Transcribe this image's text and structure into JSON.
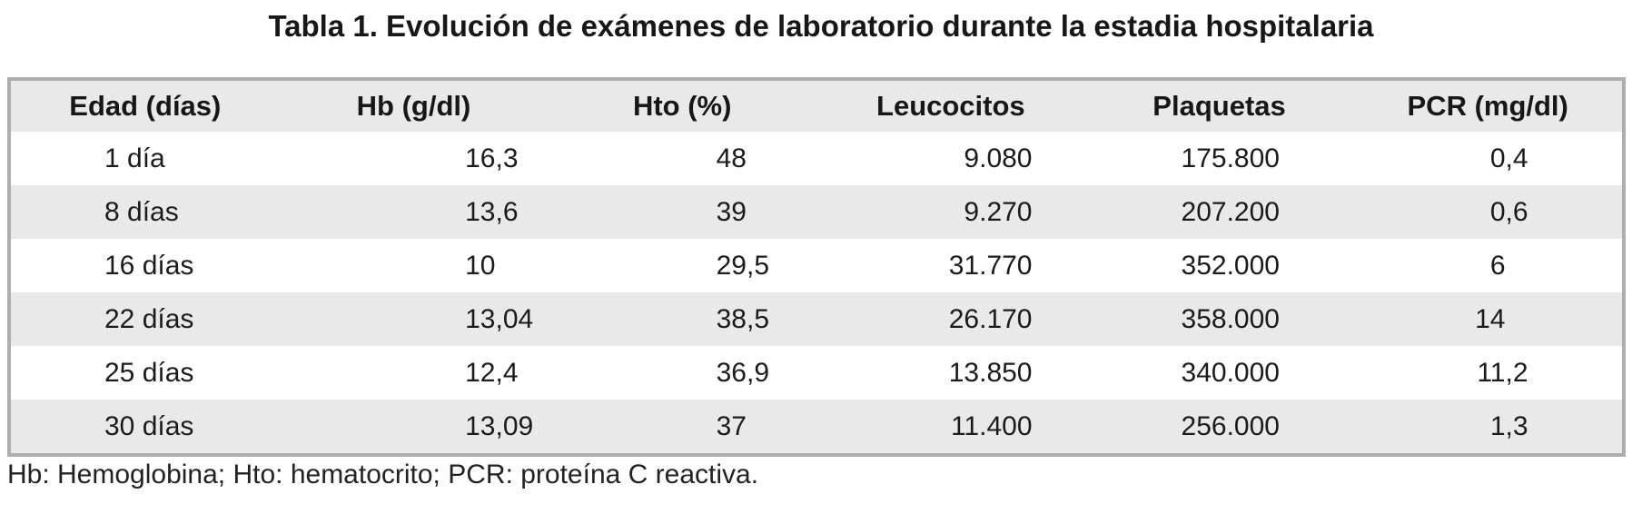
{
  "title": "Tabla 1. Evolución de exámenes de laboratorio durante la estadia hospitalaria",
  "table": {
    "columns": [
      "Edad (días)",
      "Hb (g/dl)",
      "Hto (%)",
      "Leucocitos",
      "Plaquetas",
      "PCR (mg/dl)"
    ],
    "rows": [
      [
        "1 día",
        "16,3",
        "48",
        "9.080",
        "175.800",
        "0,4"
      ],
      [
        "8 días",
        "13,6",
        "39",
        "9.270",
        "207.200",
        "0,6"
      ],
      [
        "16 días",
        "10",
        "29,5",
        "31.770",
        "352.000",
        "6"
      ],
      [
        "22 días",
        "13,04",
        "38,5",
        "26.170",
        "358.000",
        "14"
      ],
      [
        "25 días",
        "12,4",
        "36,9",
        "13.850",
        "340.000",
        "11,2"
      ],
      [
        "30 días",
        "13,09",
        "37",
        "11.400",
        "256.000",
        "1,3"
      ]
    ]
  },
  "footnote": "Hb: Hemoglobina; Hto: hematocrito; PCR: proteína C reactiva.",
  "colors": {
    "table_border": "#aeaeae",
    "header_bg": "#e9e9e9",
    "row_alt_bg": "#e9e9e9",
    "row_bg": "#ffffff",
    "text": "#1b1b1b"
  }
}
